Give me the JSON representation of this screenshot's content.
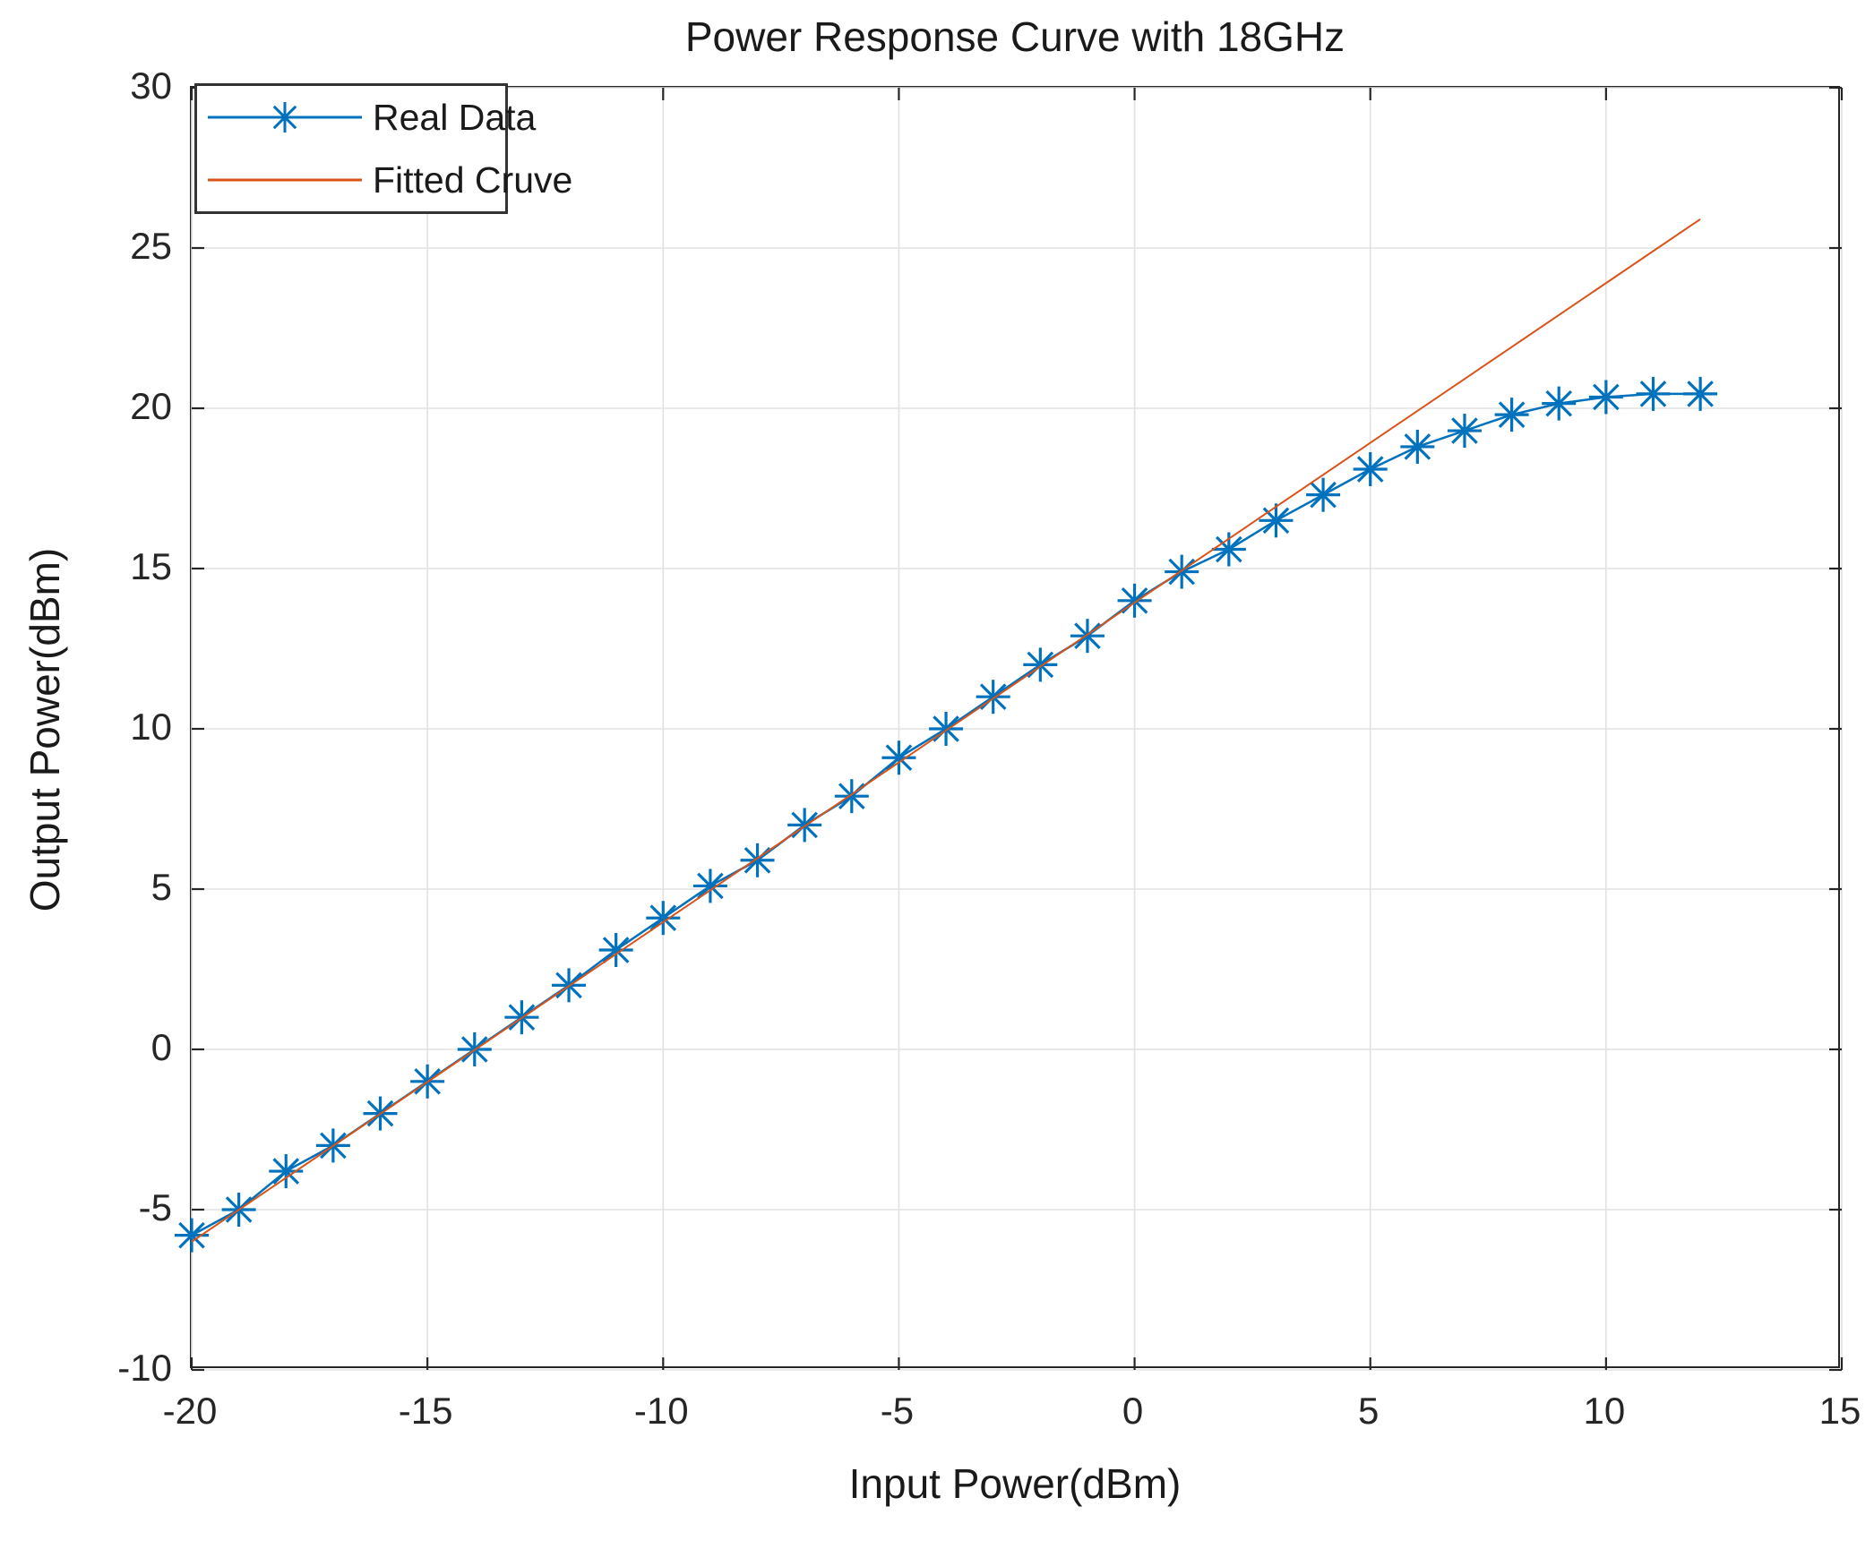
{
  "figure": {
    "title": "Power Response Curve with 18GHz",
    "xlabel": "Input Power(dBm)",
    "ylabel": "Output Power(dBm)"
  },
  "legend": {
    "position": "top-left",
    "entries": [
      {
        "label": "Real Data",
        "series": "Real Data"
      },
      {
        "label": "Fitted Cruve",
        "series": "Fitted Cruve"
      }
    ]
  },
  "colors": {
    "real_data": "#0072BD",
    "fitted_curve": "#D95319",
    "axis": "#262626",
    "grid": "#e2e2e2",
    "text": "#1a1a1a"
  },
  "chart_data": {
    "type": "line",
    "title": "Power Response Curve with 18GHz",
    "xlabel": "Input Power(dBm)",
    "ylabel": "Output Power(dBm)",
    "xlim": [
      -20,
      15
    ],
    "ylim": [
      -10,
      30
    ],
    "x_ticks": [
      -20,
      -15,
      -10,
      -5,
      0,
      5,
      10,
      15
    ],
    "y_ticks": [
      -10,
      -5,
      0,
      5,
      10,
      15,
      20,
      25,
      30
    ],
    "grid": true,
    "legend_position": "top-left",
    "series": [
      {
        "name": "Real Data",
        "color": "#0072BD",
        "marker": "asterisk",
        "line_width": 2.5,
        "x": [
          -20,
          -19,
          -18,
          -17,
          -16,
          -15,
          -14,
          -13,
          -12,
          -11,
          -10,
          -9,
          -8,
          -7,
          -6,
          -5,
          -4,
          -3,
          -2,
          -1,
          0,
          1,
          2,
          3,
          4,
          5,
          6,
          7,
          8,
          9,
          10,
          11,
          12
        ],
        "y": [
          -5.8,
          -5.0,
          -3.8,
          -3.0,
          -2.0,
          -1.0,
          0.0,
          1.0,
          2.0,
          3.1,
          4.1,
          5.1,
          5.9,
          7.0,
          7.9,
          9.1,
          10.0,
          11.0,
          12.0,
          12.9,
          14.0,
          14.9,
          15.6,
          16.5,
          17.3,
          18.1,
          18.8,
          19.3,
          19.8,
          20.15,
          20.35,
          20.45,
          20.45
        ]
      },
      {
        "name": "Fitted Cruve",
        "color": "#D95319",
        "marker": "none",
        "line_width": 2,
        "x": [
          -20,
          12
        ],
        "y": [
          -6.0,
          25.9
        ]
      }
    ]
  }
}
